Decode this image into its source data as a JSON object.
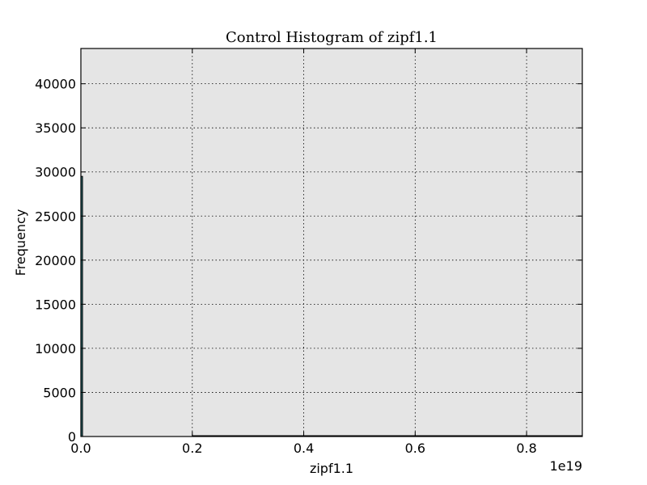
{
  "chart_data": {
    "type": "bar",
    "title": "Control Histogram of zipf1.1",
    "xlabel": "zipf1.1",
    "ylabel": "Frequency",
    "x_offset_text": "1e19",
    "xlim": [
      0.0,
      0.9
    ],
    "ylim": [
      0,
      44000
    ],
    "x_ticks": [
      0.0,
      0.2,
      0.4,
      0.6,
      0.8
    ],
    "x_tick_labels": [
      "0.0",
      "0.2",
      "0.4",
      "0.6",
      "0.8"
    ],
    "y_ticks": [
      0,
      5000,
      10000,
      15000,
      20000,
      25000,
      30000,
      35000,
      40000
    ],
    "y_tick_labels": [
      "0",
      "5000",
      "10000",
      "15000",
      "20000",
      "25000",
      "30000",
      "35000",
      "40000"
    ],
    "grid": true,
    "bins": [
      {
        "x0": 0.0,
        "x1": 0.003,
        "value": 29500
      },
      {
        "x0": 0.2,
        "x1": 0.9,
        "value": 50
      }
    ],
    "colors": {
      "plot_background": "#e5e5e5",
      "bar_fill": "#2b6e73",
      "bar_edge": "#000000",
      "grid": "#000000"
    }
  }
}
